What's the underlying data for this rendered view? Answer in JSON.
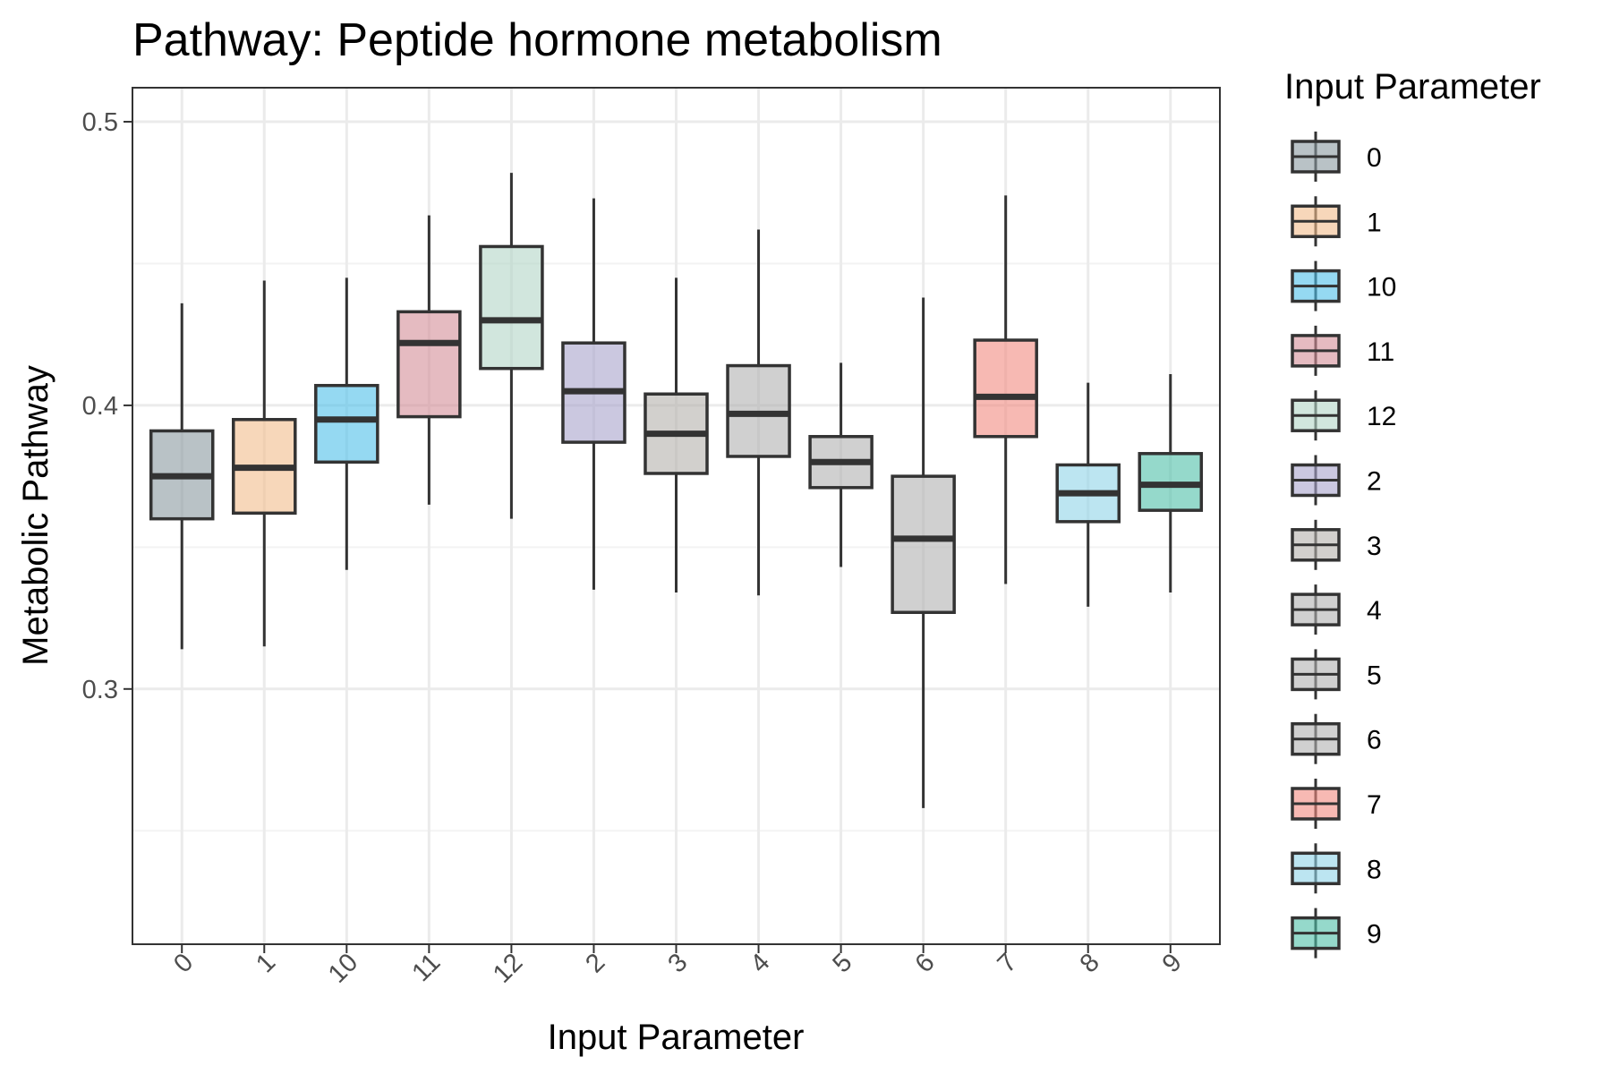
{
  "chart_data": {
    "type": "boxplot",
    "title": "Pathway: Peptide hormone metabolism",
    "xlabel": "Input Parameter",
    "ylabel": "Metabolic Pathway",
    "ylim": [
      0.21,
      0.512
    ],
    "yticks": [
      0.3,
      0.4,
      0.5
    ],
    "ytick_labels": [
      "0.3",
      "0.4",
      "0.5"
    ],
    "categories": [
      "0",
      "1",
      "10",
      "11",
      "12",
      "2",
      "3",
      "4",
      "5",
      "6",
      "7",
      "8",
      "9"
    ],
    "series": [
      {
        "category": "0",
        "whisker_low": 0.314,
        "q1": 0.36,
        "median": 0.375,
        "q3": 0.391,
        "whisker_high": 0.436,
        "color": "#8a9aa0"
      },
      {
        "category": "1",
        "whisker_low": 0.315,
        "q1": 0.362,
        "median": 0.378,
        "q3": 0.395,
        "whisker_high": 0.444,
        "color": "#f2bd8c"
      },
      {
        "category": "10",
        "whisker_low": 0.342,
        "q1": 0.38,
        "median": 0.395,
        "q3": 0.407,
        "whisker_high": 0.445,
        "color": "#4ebfea"
      },
      {
        "category": "11",
        "whisker_low": 0.365,
        "q1": 0.396,
        "median": 0.422,
        "q3": 0.433,
        "whisker_high": 0.467,
        "color": "#d38d97"
      },
      {
        "category": "12",
        "whisker_low": 0.36,
        "q1": 0.413,
        "median": 0.43,
        "q3": 0.456,
        "whisker_high": 0.482,
        "color": "#b3d6c6"
      },
      {
        "category": "2",
        "whisker_low": 0.335,
        "q1": 0.387,
        "median": 0.405,
        "q3": 0.422,
        "whisker_high": 0.473,
        "color": "#a8a3cb"
      },
      {
        "category": "3",
        "whisker_low": 0.334,
        "q1": 0.376,
        "median": 0.39,
        "q3": 0.404,
        "whisker_high": 0.445,
        "color": "#b4b0ab"
      },
      {
        "category": "4",
        "whisker_low": 0.333,
        "q1": 0.382,
        "median": 0.397,
        "q3": 0.414,
        "whisker_high": 0.462,
        "color": "#b0b0b0"
      },
      {
        "category": "5",
        "whisker_low": 0.343,
        "q1": 0.371,
        "median": 0.38,
        "q3": 0.389,
        "whisker_high": 0.415,
        "color": "#b0b0b0"
      },
      {
        "category": "6",
        "whisker_low": 0.258,
        "q1": 0.327,
        "median": 0.353,
        "q3": 0.375,
        "whisker_high": 0.438,
        "color": "#b0b0b0"
      },
      {
        "category": "7",
        "whisker_low": 0.337,
        "q1": 0.389,
        "median": 0.403,
        "q3": 0.423,
        "whisker_high": 0.474,
        "color": "#f28a80"
      },
      {
        "category": "8",
        "whisker_low": 0.329,
        "q1": 0.359,
        "median": 0.369,
        "q3": 0.379,
        "whisker_high": 0.408,
        "color": "#8fd3e8"
      },
      {
        "category": "9",
        "whisker_low": 0.334,
        "q1": 0.363,
        "median": 0.372,
        "q3": 0.383,
        "whisker_high": 0.411,
        "color": "#4fc0a8"
      }
    ],
    "legend": {
      "title": "Input Parameter",
      "placement": "right",
      "items": [
        "0",
        "1",
        "10",
        "11",
        "12",
        "2",
        "3",
        "4",
        "5",
        "6",
        "7",
        "8",
        "9"
      ]
    },
    "grid": true,
    "colors": {
      "stroke": "#333333",
      "grid_major": "#ebebeb",
      "grid_minor": "#f3f3f3",
      "panel_border": "#333333",
      "box_alpha": 0.6
    }
  }
}
